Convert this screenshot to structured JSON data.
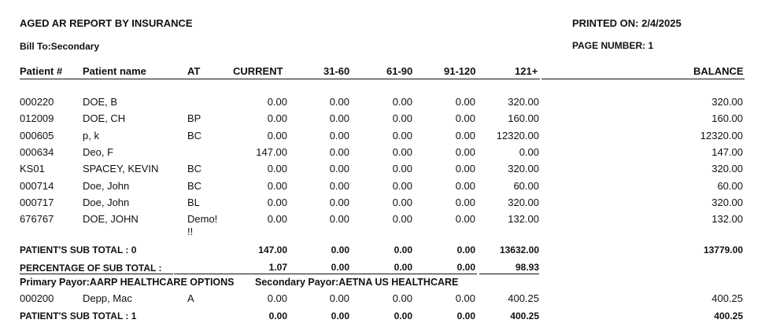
{
  "report": {
    "title": "AGED AR REPORT BY INSURANCE",
    "printed_on_label": "PRINTED ON: 2/4/2025",
    "bill_to": "Bill To:Secondary",
    "page_number": "PAGE NUMBER: 1"
  },
  "columns": [
    "Patient #",
    "Patient name",
    "AT",
    "CURRENT",
    "31-60",
    "61-90",
    "91-120",
    "121+",
    "BALANCE"
  ],
  "group1": {
    "rows": [
      {
        "id": "000220",
        "name": "DOE, B",
        "at": "",
        "current": "0.00",
        "d31": "0.00",
        "d61": "0.00",
        "d91": "0.00",
        "d121": "320.00",
        "balance": "320.00"
      },
      {
        "id": "012009",
        "name": "DOE, CH",
        "at": "BP",
        "current": "0.00",
        "d31": "0.00",
        "d61": "0.00",
        "d91": "0.00",
        "d121": "160.00",
        "balance": "160.00"
      },
      {
        "id": "000605",
        "name": "p, k",
        "at": "BC",
        "current": "0.00",
        "d31": "0.00",
        "d61": "0.00",
        "d91": "0.00",
        "d121": "12320.00",
        "balance": "12320.00"
      },
      {
        "id": "000634",
        "name": "Deo, F",
        "at": "",
        "current": "147.00",
        "d31": "0.00",
        "d61": "0.00",
        "d91": "0.00",
        "d121": "0.00",
        "balance": "147.00"
      },
      {
        "id": "KS01",
        "name": "SPACEY, KEVIN",
        "at": "BC",
        "current": "0.00",
        "d31": "0.00",
        "d61": "0.00",
        "d91": "0.00",
        "d121": "320.00",
        "balance": "320.00"
      },
      {
        "id": "000714",
        "name": "Doe, John",
        "at": "BC",
        "current": "0.00",
        "d31": "0.00",
        "d61": "0.00",
        "d91": "0.00",
        "d121": "60.00",
        "balance": "60.00"
      },
      {
        "id": "000717",
        "name": "Doe, John",
        "at": "BL",
        "current": "0.00",
        "d31": "0.00",
        "d61": "0.00",
        "d91": "0.00",
        "d121": "320.00",
        "balance": "320.00"
      },
      {
        "id": "676767",
        "name": "DOE, JOHN",
        "at": "Demo!",
        "at2": "!!",
        "current": "0.00",
        "d31": "0.00",
        "d61": "0.00",
        "d91": "0.00",
        "d121": "132.00",
        "balance": "132.00"
      }
    ],
    "subtotal": {
      "label": "PATIENT'S SUB TOTAL : 0",
      "current": "147.00",
      "d31": "0.00",
      "d61": "0.00",
      "d91": "0.00",
      "d121": "13632.00",
      "balance": "13779.00"
    },
    "percentage": {
      "label": "PERCENTAGE OF SUB TOTAL :",
      "current": "1.07",
      "d31": "0.00",
      "d61": "0.00",
      "d91": "0.00",
      "d121": "98.93"
    }
  },
  "group2": {
    "primary_payor": "Primary Payor:AARP HEALTHCARE OPTIONS",
    "secondary_payor": "Secondary Payor:AETNA US HEALTHCARE",
    "rows": [
      {
        "id": "000200",
        "name": "Depp, Mac",
        "at": "A",
        "current": "0.00",
        "d31": "0.00",
        "d61": "0.00",
        "d91": "0.00",
        "d121": "400.25",
        "balance": "400.25"
      }
    ],
    "subtotal": {
      "label": "PATIENT'S SUB TOTAL : 1",
      "current": "0.00",
      "d31": "0.00",
      "d61": "0.00",
      "d91": "0.00",
      "d121": "400.25",
      "balance": "400.25"
    }
  }
}
